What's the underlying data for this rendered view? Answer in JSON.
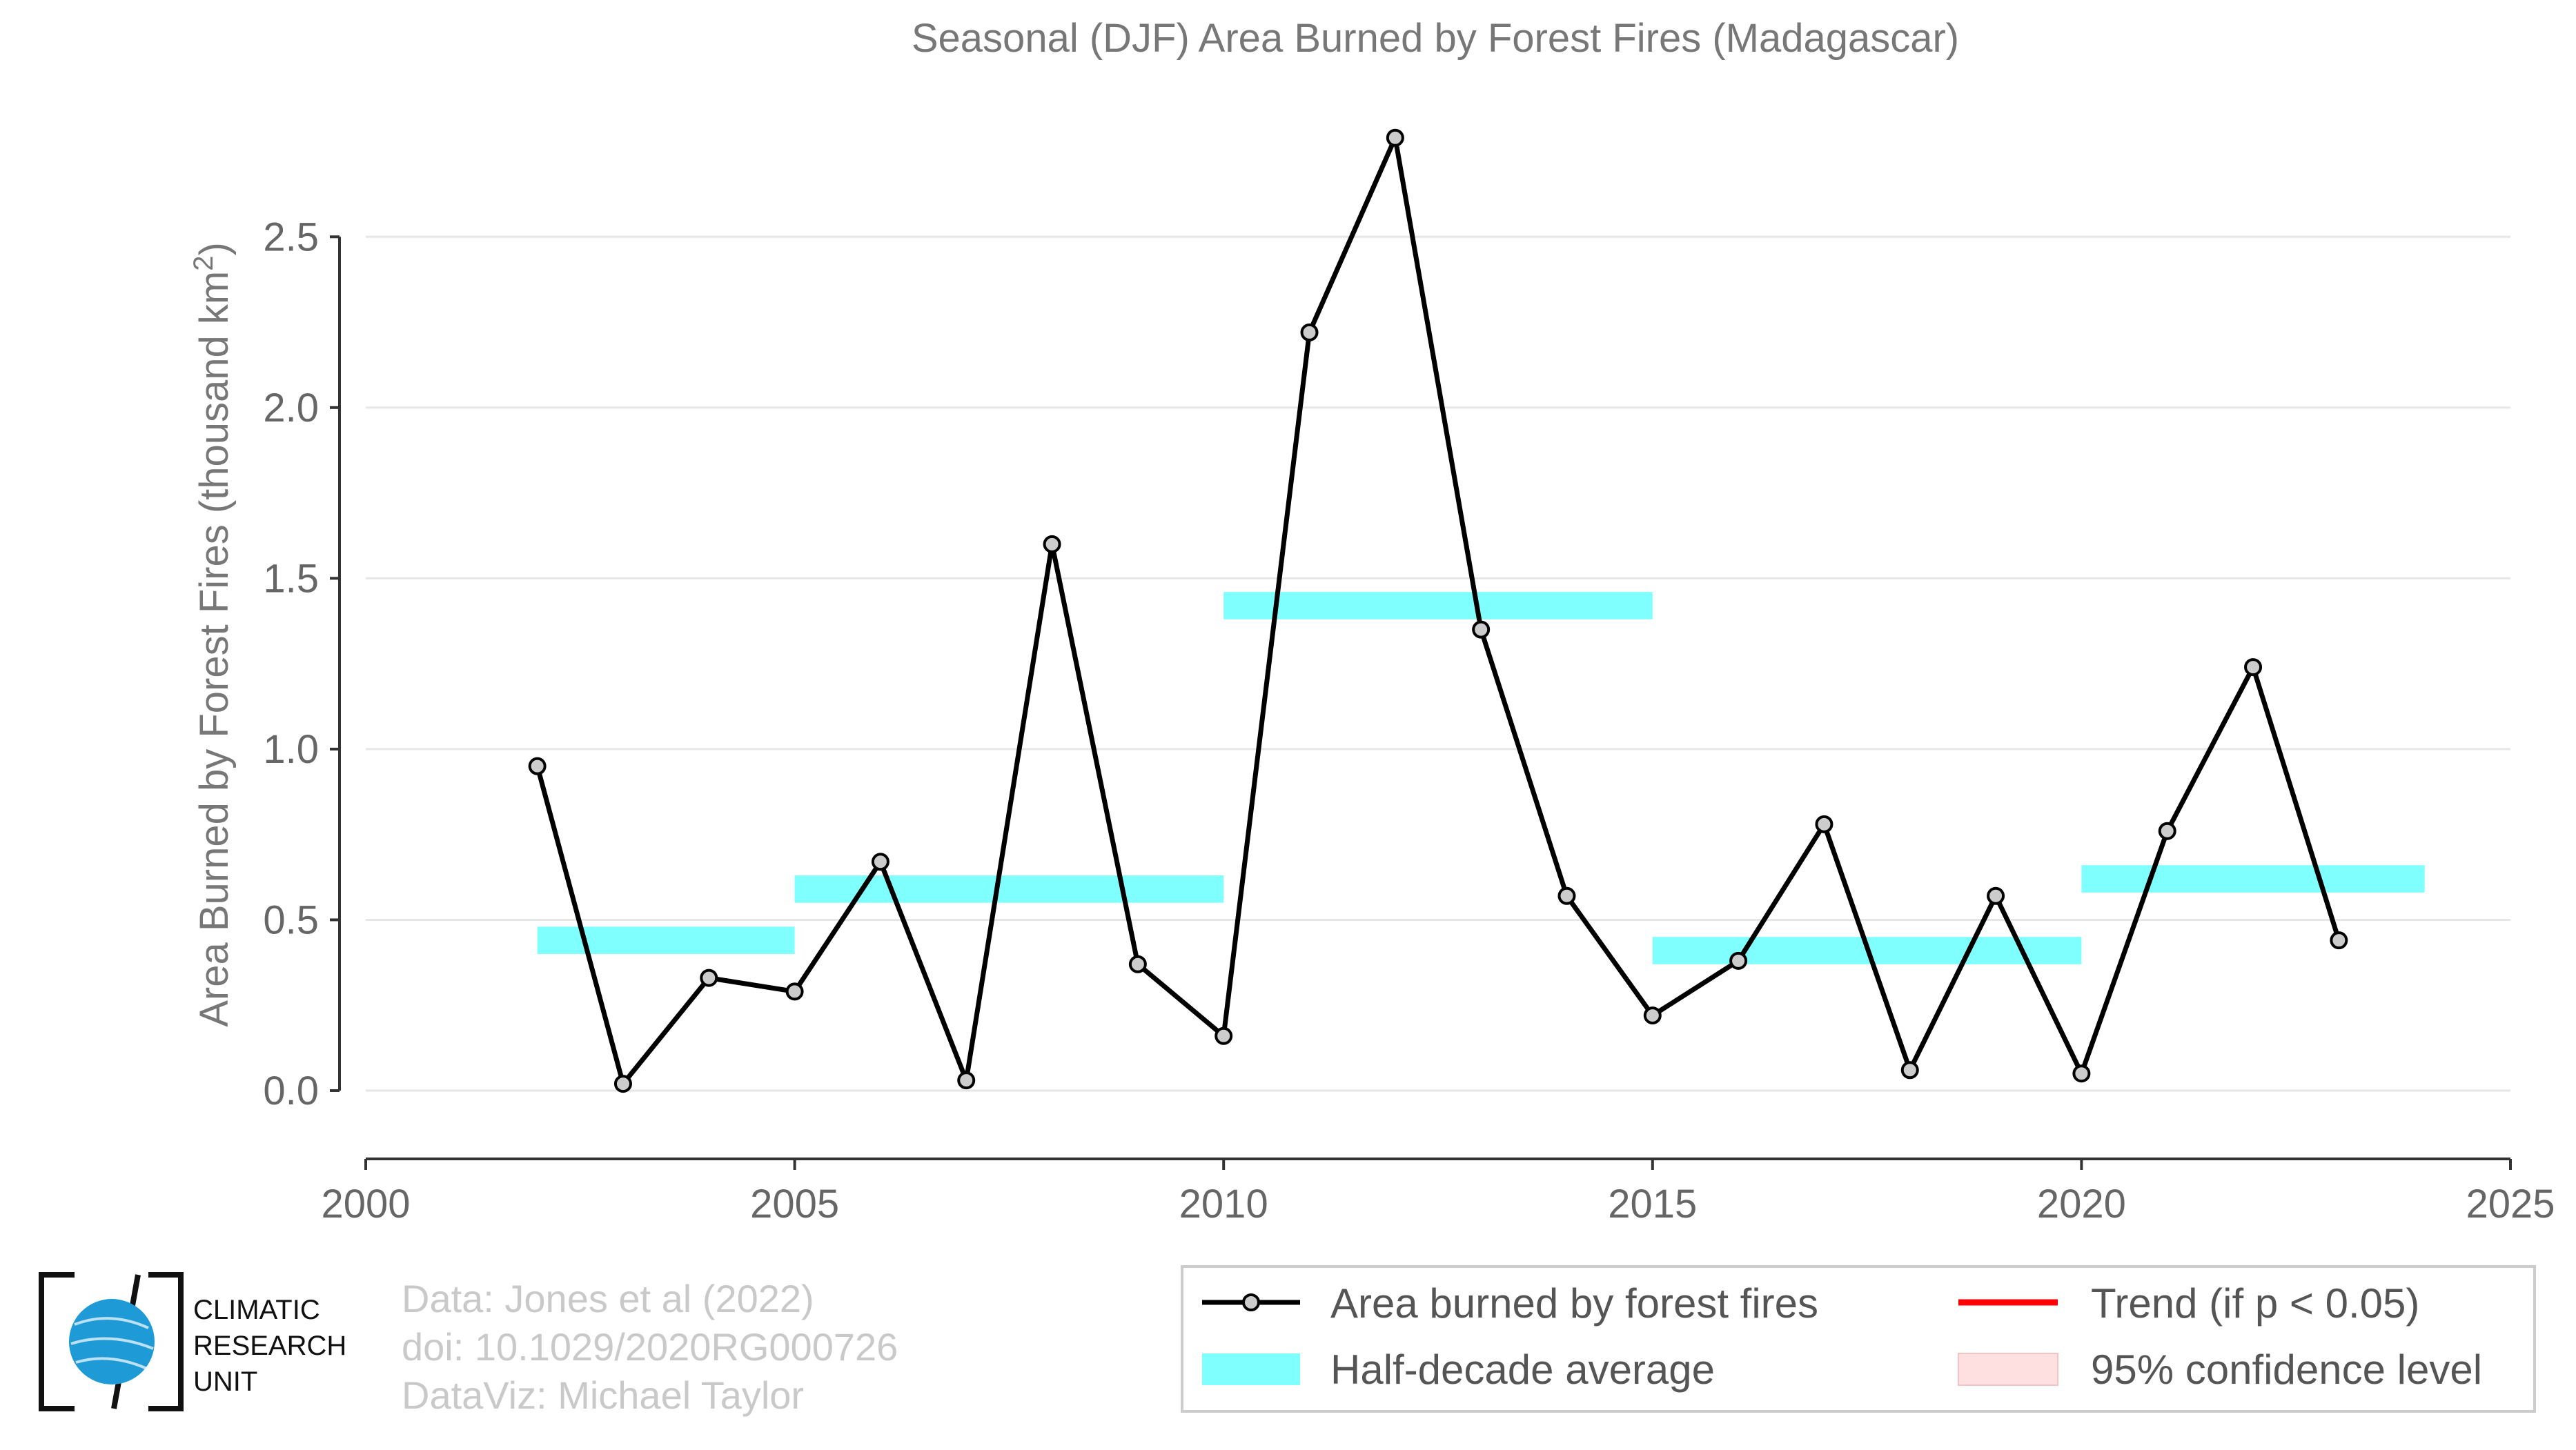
{
  "chart_data": {
    "type": "line",
    "title": "Seasonal (DJF) Area Burned by Forest Fires (Madagascar)",
    "xlabel": "",
    "ylabel": "Area Burned by Forest Fires (thousand km",
    "ylabel_sup": "2",
    "ylabel_close": ")",
    "xlim": [
      2000,
      2025
    ],
    "ylim": [
      -0.2,
      2.85
    ],
    "xticks": [
      2000,
      2005,
      2010,
      2015,
      2020,
      2025
    ],
    "yticks": [
      0.0,
      0.5,
      1.0,
      1.5,
      2.0,
      2.5
    ],
    "ytick_labels": [
      "0.0",
      "0.5",
      "1.0",
      "1.5",
      "2.0",
      "2.5"
    ],
    "grid": "horizontal",
    "series": [
      {
        "name": "Area burned by forest fires",
        "color": "#000000",
        "marker_fill": "#cccccc",
        "x": [
          2002,
          2003,
          2004,
          2005,
          2006,
          2007,
          2008,
          2009,
          2010,
          2011,
          2012,
          2013,
          2014,
          2015,
          2016,
          2017,
          2018,
          2019,
          2020,
          2021,
          2022,
          2023
        ],
        "y": [
          0.95,
          0.02,
          0.33,
          0.29,
          0.67,
          0.03,
          1.6,
          0.37,
          0.16,
          2.22,
          2.79,
          1.35,
          0.57,
          0.22,
          0.38,
          0.78,
          0.06,
          0.57,
          0.05,
          0.76,
          1.24,
          0.44
        ]
      }
    ],
    "half_decade_average": {
      "name": "Half-decade average",
      "color": "#80ffff",
      "segments": [
        {
          "x0": 2002,
          "x1": 2005,
          "y": 0.44
        },
        {
          "x0": 2005,
          "x1": 2010,
          "y": 0.59
        },
        {
          "x0": 2010,
          "x1": 2015,
          "y": 1.42
        },
        {
          "x0": 2015,
          "x1": 2020,
          "y": 0.41
        },
        {
          "x0": 2020,
          "x1": 2024,
          "y": 0.62
        }
      ]
    },
    "legend": {
      "placement": "bottom-right",
      "items": [
        {
          "label": "Area burned by forest fires",
          "kind": "line-marker",
          "color": "#000000"
        },
        {
          "label": "Trend (if p < 0.05)",
          "kind": "line",
          "color": "#ff0000"
        },
        {
          "label": "Half-decade average",
          "kind": "band",
          "color": "#80ffff"
        },
        {
          "label": "95% confidence level",
          "kind": "band",
          "color": "#ffe0e0"
        }
      ]
    }
  },
  "credits": {
    "line1": "Data: Jones et al (2022)",
    "line2": "doi: 10.1029/2020RG000726",
    "line3": "DataViz: Michael Taylor"
  },
  "logo": {
    "line1": "CLIMATIC",
    "line2": "RESEARCH",
    "line3": "UNIT",
    "globe_color": "#1e9ad6"
  }
}
